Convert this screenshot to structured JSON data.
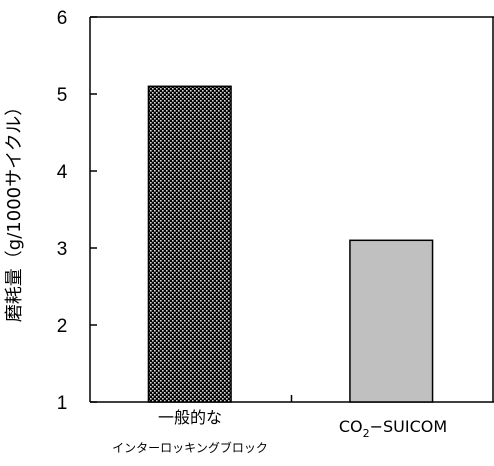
{
  "chart_data": {
    "type": "bar",
    "ylabel": "磨耗量（g/1000サイクル）",
    "xlabel": "",
    "title": "",
    "ylim": [
      1,
      6
    ],
    "yticks": [
      1,
      2,
      3,
      4,
      5,
      6
    ],
    "grid": false,
    "legend": "none",
    "categories": [
      {
        "line1": "一般的な",
        "line2": "インターロッキングブロック",
        "line2_sub": ""
      },
      {
        "line1": "CO",
        "line1_sub": "2",
        "line1_rest": "−SUICOM",
        "line2": ""
      }
    ],
    "values": [
      5.1,
      3.1
    ],
    "bar_fills": [
      "dotted-dark",
      "#c0c0c0"
    ],
    "colors": {
      "axis": "#000000",
      "bar1_base": "#000000",
      "bar1_dots": "#d8d8d8",
      "bar2": "#c0c0c0",
      "bar_stroke": "#000000"
    }
  }
}
